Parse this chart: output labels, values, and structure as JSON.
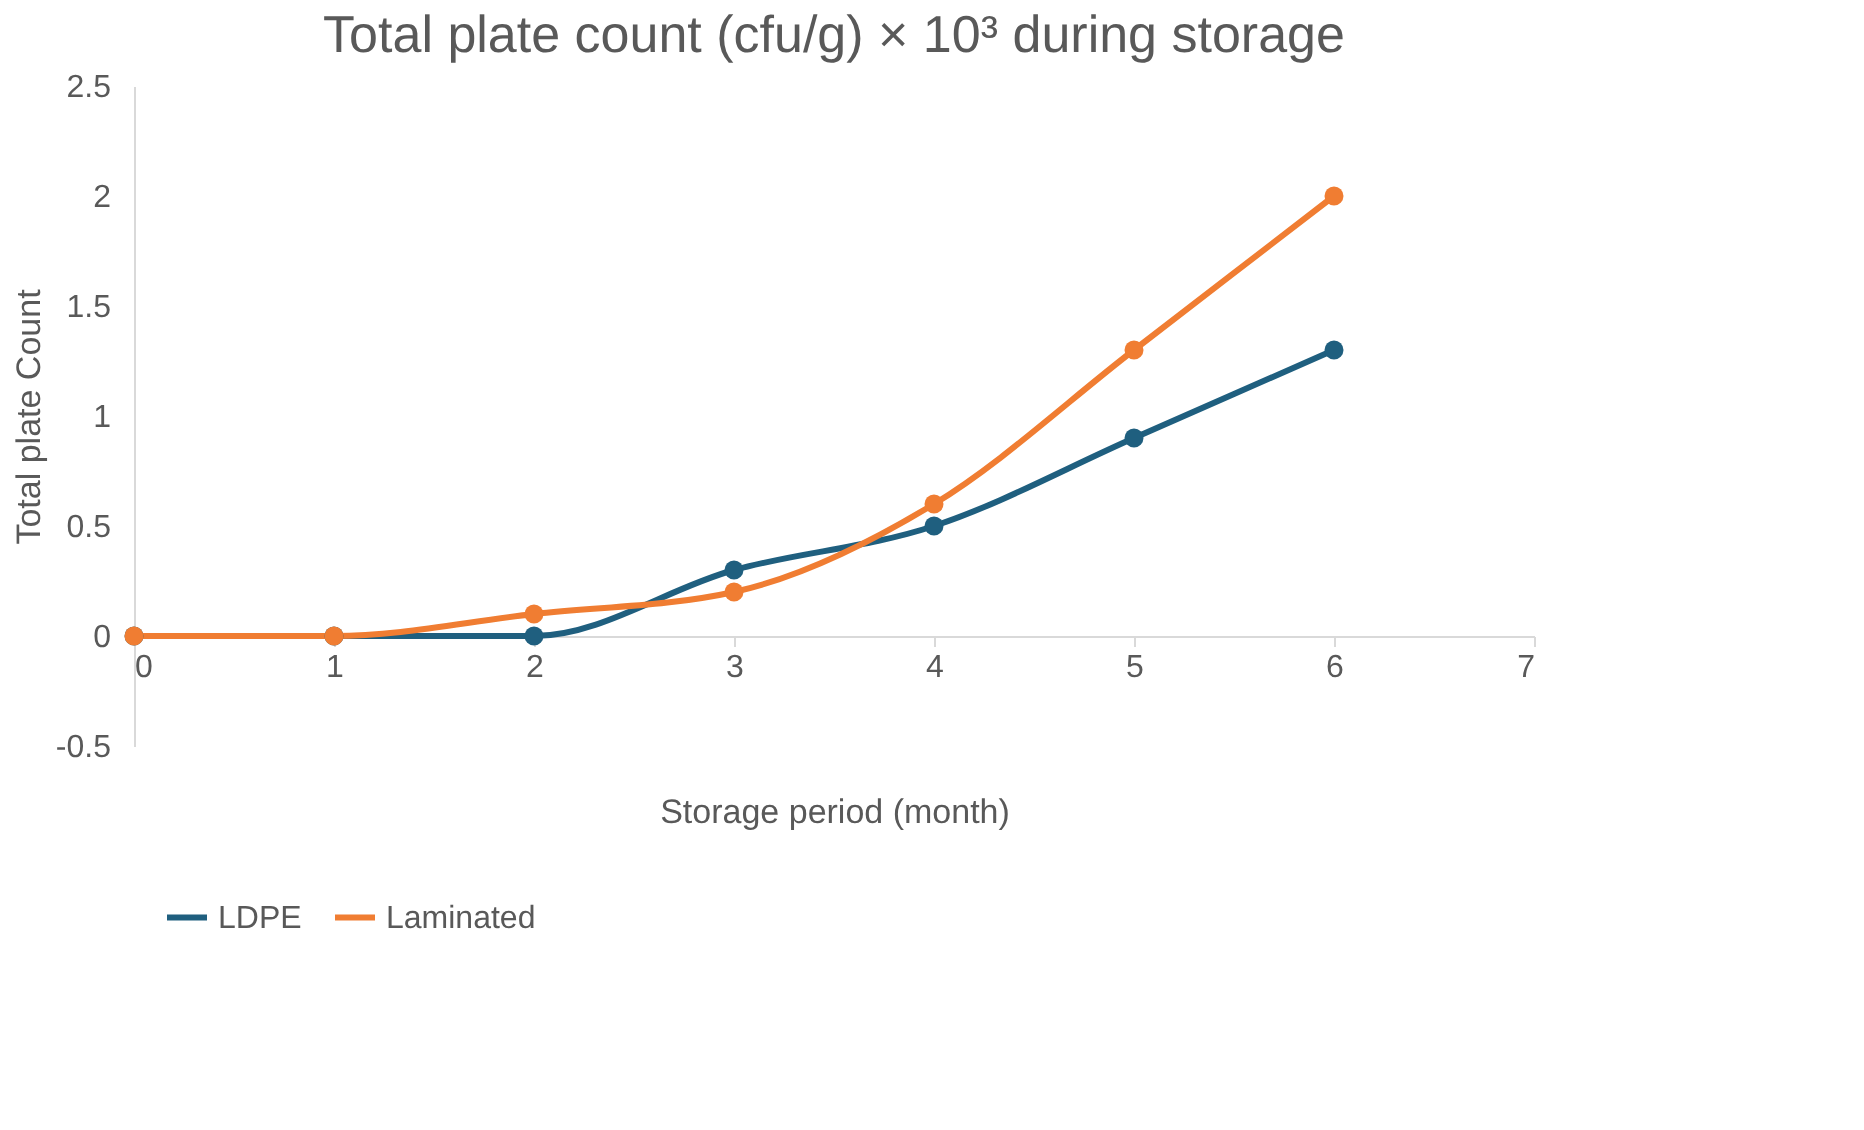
{
  "chart_data": {
    "type": "line",
    "title": "Total plate count (cfu/g) × 10³ during storage",
    "xlabel": "Storage period (month)",
    "ylabel": "Total plate Count",
    "x": [
      0,
      1,
      2,
      3,
      4,
      5,
      6
    ],
    "series": [
      {
        "name": "LDPE",
        "color": "#1f5f7f",
        "values": [
          0,
          0,
          0,
          0.3,
          0.5,
          0.9,
          1.3
        ]
      },
      {
        "name": "Laminated",
        "color": "#f07d32",
        "values": [
          0,
          0,
          0.1,
          0.2,
          0.6,
          1.3,
          2.0
        ]
      }
    ],
    "xlim": [
      0,
      7
    ],
    "xticks": [
      0,
      1,
      2,
      3,
      4,
      5,
      6,
      7
    ],
    "ylim": [
      -0.5,
      2.5
    ],
    "yticks": [
      -0.5,
      0,
      0.5,
      1,
      1.5,
      2,
      2.5
    ],
    "grid": false,
    "legend": "bottom",
    "marker": "circle",
    "line_style": "solid"
  }
}
